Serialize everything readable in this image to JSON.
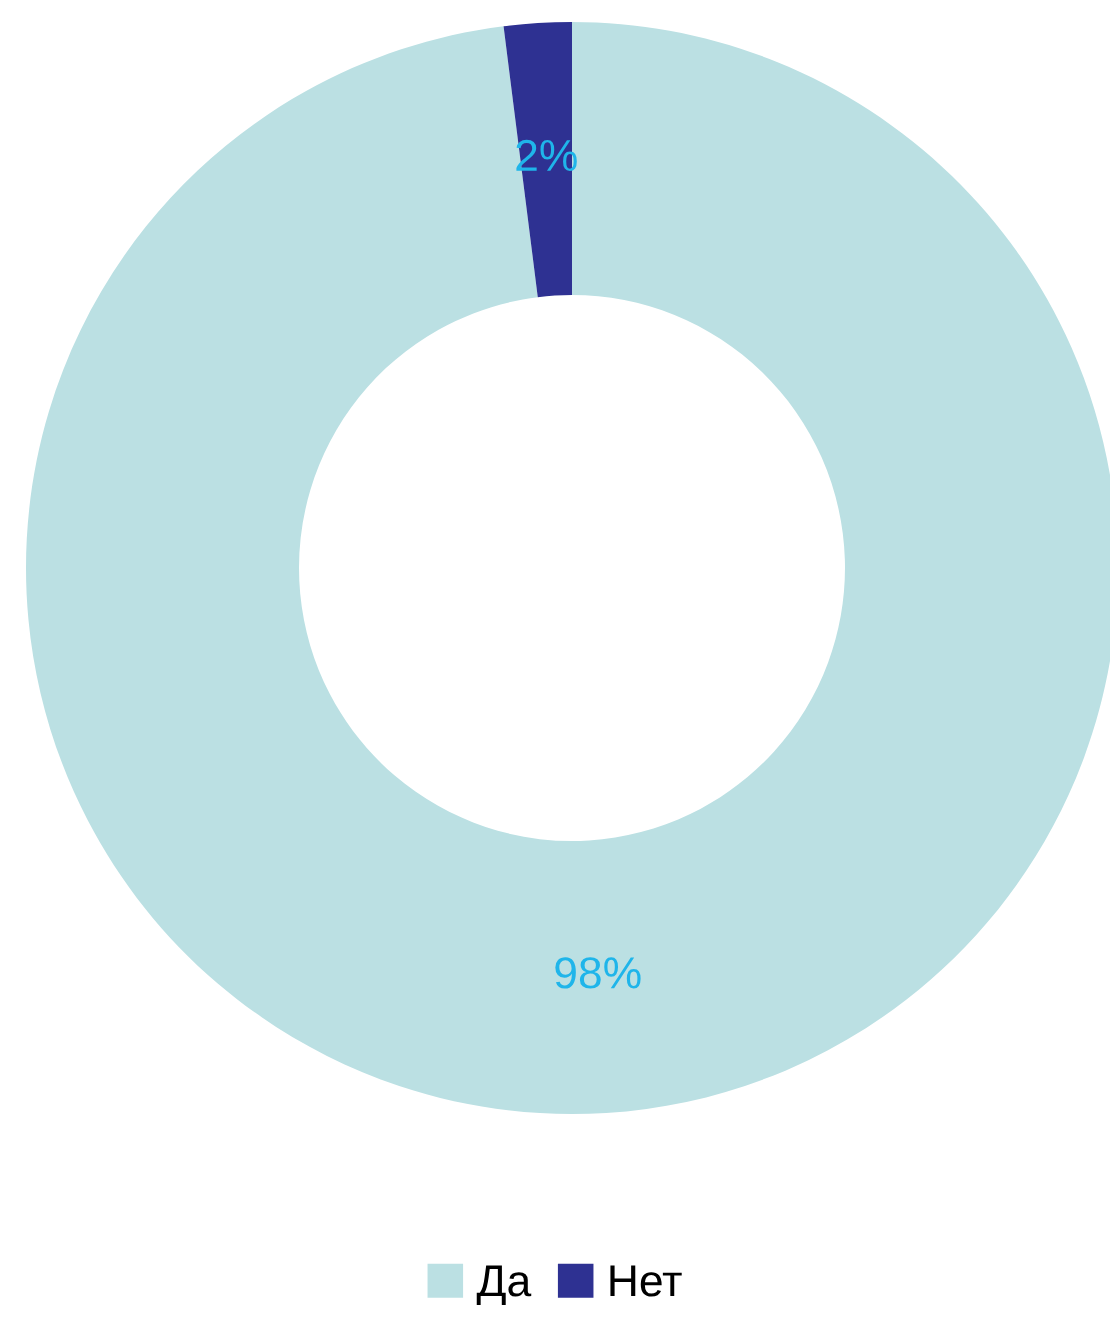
{
  "chart_data": {
    "type": "donut",
    "categories": [
      "Да",
      "Нет"
    ],
    "values": [
      98,
      2
    ],
    "colors": [
      "#bbe0e3",
      "#2e3192"
    ],
    "value_labels": [
      "98%",
      "2%"
    ],
    "legend": "bottom"
  }
}
